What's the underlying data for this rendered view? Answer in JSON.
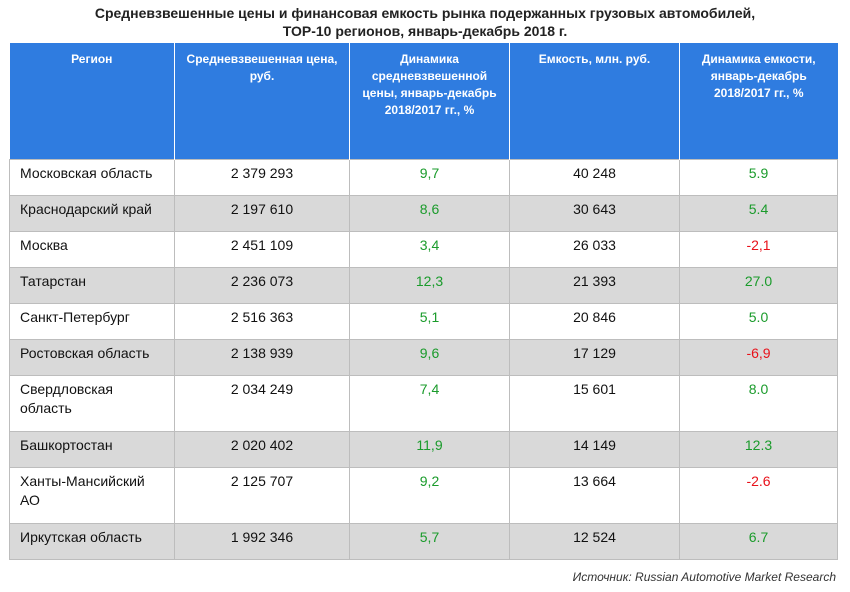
{
  "title": {
    "line1": "Средневзвешенные цены и финансовая емкость рынка подержанных грузовых автомобилей,",
    "line2": "ТОР-10 регионов, январь-декабрь 2018 г."
  },
  "headers": {
    "region": "Регион",
    "price": "Средневзвешенная цена, руб.",
    "price_dynamics": "Динамика средневзвешенной цены, январь-декабрь 2018/2017 гг., %",
    "capacity": "Емкость, млн. руб.",
    "capacity_dynamics": "Динамика емкости, январь-декабрь 2018/2017 гг., %"
  },
  "rows": [
    {
      "region": "Московская область",
      "price": "2 379 293",
      "price_dyn": "9,7",
      "capacity": "40 248",
      "cap_dyn": "5.9",
      "cap_dyn_color": "#1a9b2b"
    },
    {
      "region": "Краснодарский край",
      "price": "2 197 610",
      "price_dyn": "8,6",
      "capacity": "30 643",
      "cap_dyn": "5.4",
      "cap_dyn_color": "#1a9b2b"
    },
    {
      "region": "Москва",
      "price": "2 451 109",
      "price_dyn": "3,4",
      "capacity": "26 033",
      "cap_dyn": "-2,1",
      "cap_dyn_color": "#e8111a"
    },
    {
      "region": "Татарстан",
      "price": "2 236 073",
      "price_dyn": "12,3",
      "capacity": "21 393",
      "cap_dyn": "27.0",
      "cap_dyn_color": "#1a9b2b"
    },
    {
      "region": "Санкт-Петербург",
      "price": "2 516 363",
      "price_dyn": "5,1",
      "capacity": "20 846",
      "cap_dyn": "5.0",
      "cap_dyn_color": "#1a9b2b"
    },
    {
      "region": "Ростовская область",
      "price": "2 138 939",
      "price_dyn": "9,6",
      "capacity": "17 129",
      "cap_dyn": "-6,9",
      "cap_dyn_color": "#e8111a"
    },
    {
      "region": "Свердловская область",
      "price": "2 034 249",
      "price_dyn": "7,4",
      "capacity": "15 601",
      "cap_dyn": "8.0",
      "cap_dyn_color": "#1a9b2b"
    },
    {
      "region": "Башкортостан",
      "price": "2 020 402",
      "price_dyn": "11,9",
      "capacity": "14 149",
      "cap_dyn": "12.3",
      "cap_dyn_color": "#1a9b2b"
    },
    {
      "region": "Ханты-Мансийский АО",
      "price": "2 125 707",
      "price_dyn": "9,2",
      "capacity": "13 664",
      "cap_dyn": "-2.6",
      "cap_dyn_color": "#e8111a"
    },
    {
      "region": "Иркутская область",
      "price": "1 992 346",
      "price_dyn": "5,7",
      "capacity": "12 524",
      "cap_dyn": "6.7",
      "cap_dyn_color": "#1a9b2b"
    }
  ],
  "source": "Источник: Russian Automotive Market Research",
  "colors": {
    "header_bg": "#2f7ce0",
    "positive": "#1a9b2b",
    "negative": "#e8111a",
    "alt_row": "#d9d9d9"
  }
}
